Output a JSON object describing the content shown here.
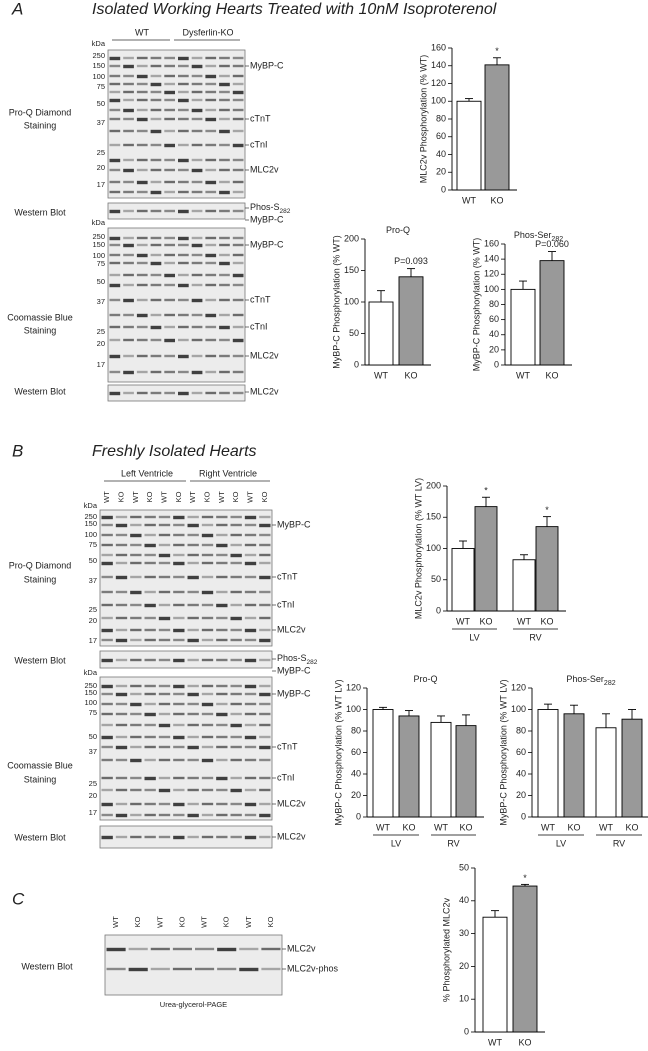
{
  "panels": [
    {
      "label": "A",
      "title": "Isolated Working Hearts Treated with 10nM Isoproterenol",
      "lane_header": [
        "WT",
        "Dysferlin-KO"
      ],
      "markers": [
        [
          "kDa",
          "250",
          "150",
          "100",
          "75",
          "50",
          "37",
          "25",
          "20",
          "17"
        ],
        [
          "kDa",
          "250",
          "150",
          "100",
          "75",
          "50",
          "37",
          "25",
          "20",
          "17"
        ]
      ],
      "band_labels": [
        "MyBP-C",
        "cTnT",
        "cTnI",
        "MLC2v",
        {
          "text": "Phos-S",
          "sub": "282"
        },
        "MyBP-C",
        "MyBP-C",
        "cTnT",
        "cTnI",
        "MLC2v",
        "MLC2v"
      ],
      "side_labels": [
        [
          "Pro-Q Diamond",
          "Staining"
        ],
        [
          "Western Blot"
        ],
        [
          "Coomassie Blue",
          "Staining"
        ],
        [
          "Western Blot"
        ]
      ]
    },
    {
      "label": "B",
      "title": "Freshly Isolated Hearts",
      "lane_header": [
        "Left Ventricle",
        "Right Ventricle"
      ],
      "lanes": [
        "WT",
        "KO",
        "WT",
        "KO",
        "WT",
        "KO",
        "WT",
        "KO",
        "WT",
        "KO",
        "WT",
        "KO"
      ],
      "markers": [
        [
          "kDa",
          "250",
          "150",
          "100",
          "75",
          "50",
          "37",
          "25",
          "20",
          "17"
        ],
        [
          "kDa",
          "250",
          "150",
          "100",
          "75",
          "50",
          "37",
          "25",
          "20",
          "17"
        ]
      ],
      "band_labels": [
        "MyBP-C",
        "cTnT",
        "cTnI",
        "MLC2v",
        {
          "text": "Phos-S",
          "sub": "282"
        },
        "MyBP-C",
        "MyBP-C",
        "cTnT",
        "cTnI",
        "MLC2v",
        "MLC2v"
      ],
      "side_labels": [
        [
          "Pro-Q Diamond",
          "Staining"
        ],
        [
          "Western Blot"
        ],
        [
          "Coomassie Blue",
          "Staining"
        ],
        [
          "Western Blot"
        ]
      ]
    },
    {
      "label": "C",
      "lanes": [
        "WT",
        "KO",
        "WT",
        "KO",
        "WT",
        "KO",
        "WT",
        "KO"
      ],
      "band_labels": [
        "MLC2v",
        "MLC2v-phos"
      ],
      "side_labels": [
        [
          "Western Blot"
        ]
      ],
      "caption": "Urea-glycerol-PAGE"
    }
  ],
  "chart_data": [
    {
      "type": "bar",
      "y_label": "MLC2v Phosphorylation (% WT)",
      "categories": [
        "WT",
        "KO"
      ],
      "values": [
        100,
        141
      ],
      "errors": [
        3,
        8
      ],
      "colors": [
        "#ffffff",
        "#999999"
      ],
      "value_annotations": [
        null,
        "*"
      ],
      "ylim": [
        0,
        160
      ],
      "yticks": [
        0,
        20,
        40,
        60,
        80,
        100,
        120,
        140,
        160
      ]
    },
    {
      "type": "bar",
      "title": "Pro-Q",
      "y_label": "MyBP-C Phosphorylation (% WT)",
      "categories": [
        "WT",
        "KO"
      ],
      "values": [
        100,
        140
      ],
      "errors": [
        18,
        13
      ],
      "colors": [
        "#ffffff",
        "#999999"
      ],
      "value_annotations": [
        null,
        "P=0.093"
      ],
      "ylim": [
        0,
        200
      ],
      "yticks": [
        0,
        50,
        100,
        150,
        200
      ]
    },
    {
      "type": "bar",
      "title": "Phos-Ser",
      "title_subscript": "282",
      "y_label": "MyBP-C Phosphorylation (% WT)",
      "categories": [
        "WT",
        "KO"
      ],
      "values": [
        100,
        138
      ],
      "errors": [
        11,
        12
      ],
      "colors": [
        "#ffffff",
        "#999999"
      ],
      "value_annotations": [
        null,
        "P=0.060"
      ],
      "ylim": [
        0,
        160
      ],
      "yticks": [
        0,
        20,
        40,
        60,
        80,
        100,
        120,
        140,
        160
      ]
    },
    {
      "type": "bar",
      "y_label": "MLC2v Phosphorylation (% WT LV)",
      "categories": [
        "WT",
        "KO",
        "WT",
        "KO"
      ],
      "groups": [
        "LV",
        "RV"
      ],
      "values": [
        100,
        167,
        82,
        135
      ],
      "errors": [
        12,
        15,
        8,
        16
      ],
      "colors": [
        "#ffffff",
        "#999999",
        "#ffffff",
        "#999999"
      ],
      "value_annotations": [
        null,
        "*",
        null,
        "*"
      ],
      "ylim": [
        0,
        200
      ],
      "yticks": [
        0,
        50,
        100,
        150,
        200
      ]
    },
    {
      "type": "bar",
      "title": "Pro-Q",
      "y_label": "MyBP-C Phosphorylation (% WT LV)",
      "categories": [
        "WT",
        "KO",
        "WT",
        "KO"
      ],
      "groups": [
        "LV",
        "RV"
      ],
      "values": [
        100,
        94,
        88,
        85
      ],
      "errors": [
        2,
        5,
        6,
        10
      ],
      "colors": [
        "#ffffff",
        "#999999",
        "#ffffff",
        "#999999"
      ],
      "ylim": [
        0,
        120
      ],
      "yticks": [
        0,
        20,
        40,
        60,
        80,
        100,
        120
      ]
    },
    {
      "type": "bar",
      "title": "Phos-Ser",
      "title_subscript": "282",
      "y_label": "MyBP-C Phosphorylation (% WT LV)",
      "categories": [
        "WT",
        "KO",
        "WT",
        "KO"
      ],
      "groups": [
        "LV",
        "RV"
      ],
      "values": [
        100,
        96,
        83,
        91
      ],
      "errors": [
        5,
        8,
        13,
        9
      ],
      "colors": [
        "#ffffff",
        "#999999",
        "#ffffff",
        "#999999"
      ],
      "ylim": [
        0,
        120
      ],
      "yticks": [
        0,
        20,
        40,
        60,
        80,
        100,
        120
      ]
    },
    {
      "type": "bar",
      "y_label": "% Phosphorylated MLC2v",
      "categories": [
        "WT",
        "KO"
      ],
      "values": [
        35,
        44.5
      ],
      "errors": [
        2,
        0.5
      ],
      "colors": [
        "#ffffff",
        "#999999"
      ],
      "value_annotations": [
        null,
        "*"
      ],
      "ylim": [
        0,
        50
      ],
      "yticks": [
        0,
        10,
        20,
        30,
        40,
        50
      ]
    }
  ]
}
